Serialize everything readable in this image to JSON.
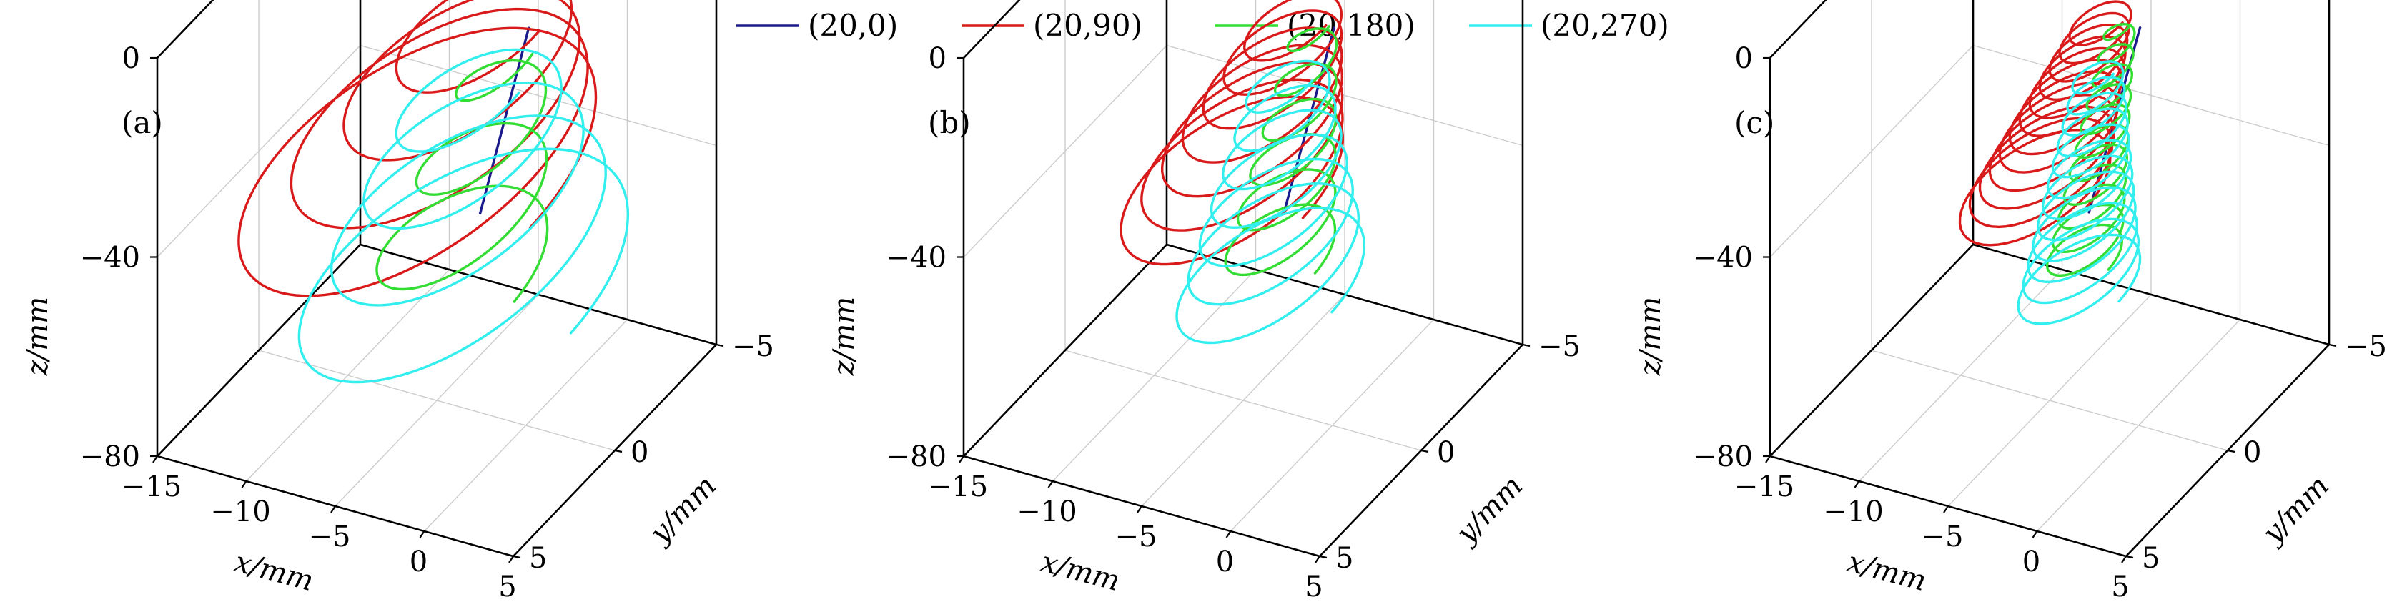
{
  "legend": [
    {
      "label": "(20,0)",
      "color": "#1a1a8c"
    },
    {
      "label": "(20,90)",
      "color": "#d91a1a"
    },
    {
      "label": "(20,180)",
      "color": "#33dd33"
    },
    {
      "label": "(20,270)",
      "color": "#33eeee"
    }
  ],
  "chart_data": [
    {
      "type": "line3d",
      "panel_label": "(a)",
      "xlabel": "x/mm",
      "ylabel": "y/mm",
      "zlabel": "z/mm",
      "xlim": [
        -15,
        5
      ],
      "ylim": [
        -5,
        5
      ],
      "zlim": [
        -80,
        0
      ],
      "xticks": [
        "−15",
        "−10",
        "−5",
        "0",
        "5"
      ],
      "yticks": [
        "−5",
        "0",
        "5"
      ],
      "zticks": [
        "0",
        "−40",
        "−80"
      ],
      "grid": true,
      "series": [
        {
          "name": "(20,0)",
          "center": [
            0,
            0
          ],
          "radius": 0.3,
          "turns": 0,
          "z_range": [
            0,
            -40
          ],
          "drift": [
            -3,
            0
          ]
        },
        {
          "name": "(20,90)",
          "center": [
            -2,
            0
          ],
          "radius": 5,
          "turns": 4,
          "z_range": [
            0,
            -40
          ],
          "drift": [
            -5,
            0
          ]
        },
        {
          "name": "(20,180)",
          "center": [
            -1,
            0
          ],
          "radius": 2.5,
          "turns": 3,
          "z_range": [
            -5,
            -45
          ],
          "drift": [
            -1,
            2
          ]
        },
        {
          "name": "(20,270)",
          "center": [
            0,
            2.5
          ],
          "radius": 4.5,
          "turns": 4,
          "z_range": [
            0,
            -40
          ],
          "drift": [
            0,
            1
          ]
        }
      ]
    },
    {
      "type": "line3d",
      "panel_label": "(b)",
      "xlabel": "x/mm",
      "ylabel": "y/mm",
      "zlabel": "z/mm",
      "xlim": [
        -15,
        5
      ],
      "ylim": [
        -5,
        5
      ],
      "zlim": [
        -80,
        0
      ],
      "xticks": [
        "−15",
        "−10",
        "−5",
        "0",
        "5"
      ],
      "yticks": [
        "−5",
        "0",
        "5"
      ],
      "zticks": [
        "0",
        "−40",
        "−80"
      ],
      "grid": true,
      "series": [
        {
          "name": "(20,0)",
          "center": [
            0,
            0
          ],
          "radius": 0.2,
          "turns": 0,
          "z_range": [
            0,
            -40
          ],
          "drift": [
            -3,
            0
          ]
        },
        {
          "name": "(20,90)",
          "center": [
            -2,
            0
          ],
          "radius": 3,
          "turns": 7,
          "z_range": [
            0,
            -40
          ],
          "drift": [
            -4,
            0
          ]
        },
        {
          "name": "(20,180)",
          "center": [
            -1,
            0
          ],
          "radius": 1.5,
          "turns": 6,
          "z_range": [
            0,
            -45
          ],
          "drift": [
            -1,
            1
          ]
        },
        {
          "name": "(20,270)",
          "center": [
            0,
            2.2
          ],
          "radius": 2.5,
          "turns": 7,
          "z_range": [
            0,
            -40
          ],
          "drift": [
            0,
            1
          ]
        }
      ]
    },
    {
      "type": "line3d",
      "panel_label": "(c)",
      "xlabel": "x/mm",
      "ylabel": "y/mm",
      "zlabel": "z/mm",
      "xlim": [
        -15,
        5
      ],
      "ylim": [
        -5,
        5
      ],
      "zlim": [
        -80,
        0
      ],
      "xticks": [
        "−15",
        "−10",
        "−5",
        "0",
        "5"
      ],
      "yticks": [
        "−5",
        "0",
        "5"
      ],
      "zticks": [
        "0",
        "−40",
        "−80"
      ],
      "grid": true,
      "series": [
        {
          "name": "(20,0)",
          "center": [
            0,
            0
          ],
          "radius": 0.15,
          "turns": 0,
          "z_range": [
            0,
            -40
          ],
          "drift": [
            -3,
            0
          ]
        },
        {
          "name": "(20,90)",
          "center": [
            -2,
            0
          ],
          "radius": 2,
          "turns": 12,
          "z_range": [
            0,
            -40
          ],
          "drift": [
            -4,
            0
          ]
        },
        {
          "name": "(20,180)",
          "center": [
            -1,
            0
          ],
          "radius": 1,
          "turns": 11,
          "z_range": [
            0,
            -45
          ],
          "drift": [
            -1,
            1
          ]
        },
        {
          "name": "(20,270)",
          "center": [
            0,
            2
          ],
          "radius": 1.6,
          "turns": 12,
          "z_range": [
            0,
            -40
          ],
          "drift": [
            0,
            1
          ]
        }
      ]
    }
  ]
}
